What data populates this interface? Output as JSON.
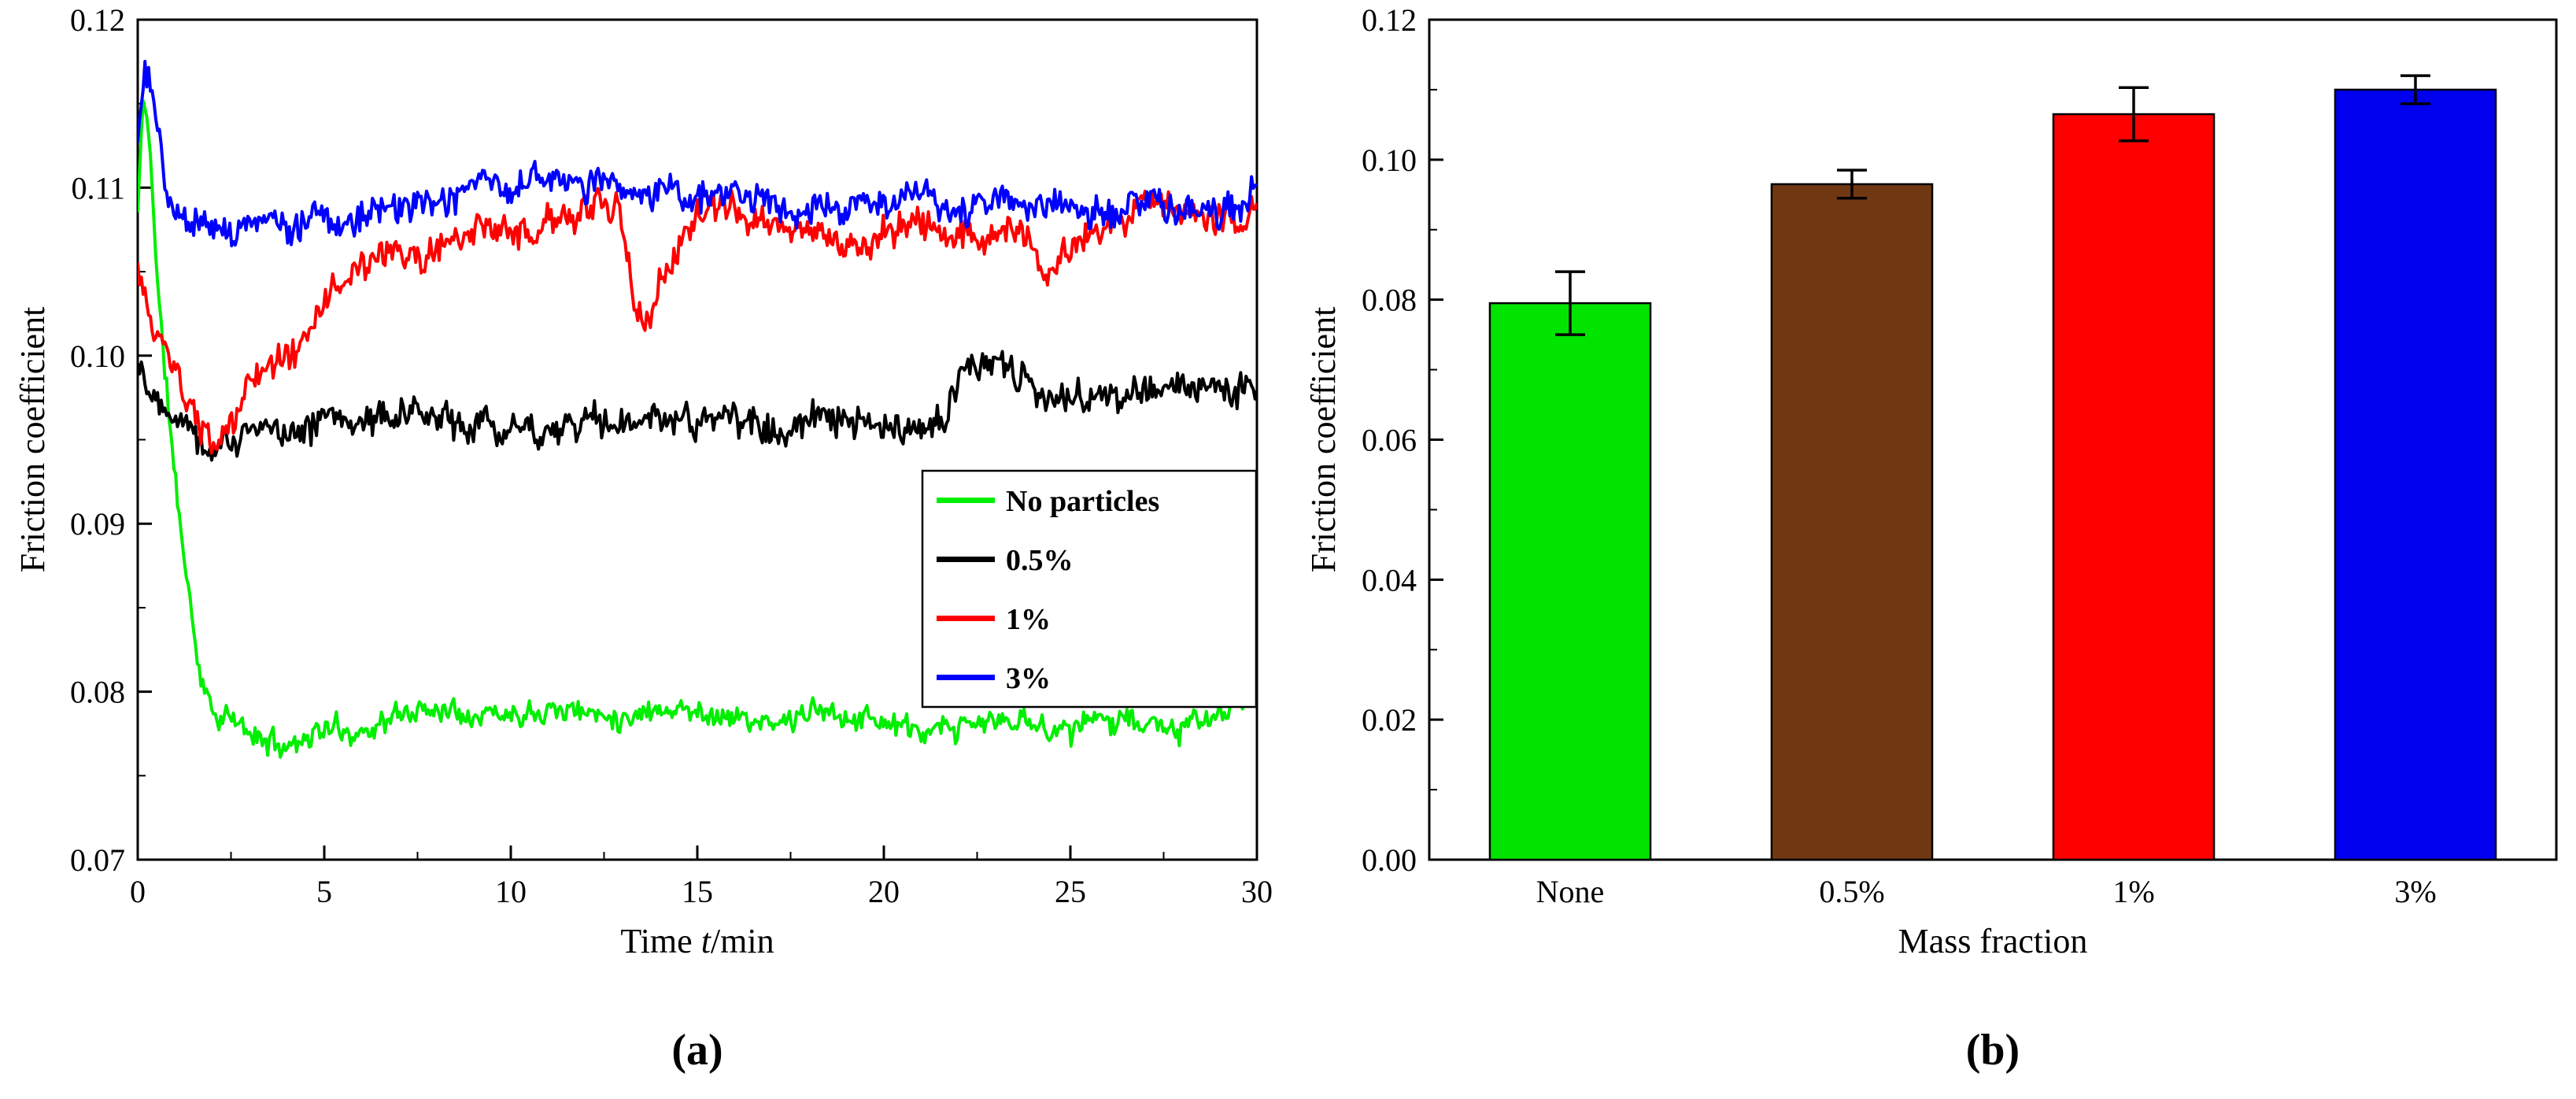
{
  "page": {
    "background": "#ffffff"
  },
  "panels": [
    {
      "label": "(a)"
    },
    {
      "label": "(b)"
    }
  ],
  "chart_data": [
    {
      "type": "line",
      "title": "",
      "xlabel": "Time t/min",
      "xlabel_parts": [
        {
          "text": "Time ",
          "italic": false
        },
        {
          "text": "t",
          "italic": true
        },
        {
          "text": "/min",
          "italic": false
        }
      ],
      "ylabel": "Friction coefficient",
      "xlim": [
        0,
        30
      ],
      "ylim": [
        0.07,
        0.12
      ],
      "xticks": [
        0,
        5,
        10,
        15,
        20,
        25,
        30
      ],
      "xtick_labels": [
        "0",
        "5",
        "10",
        "15",
        "20",
        "25",
        "30"
      ],
      "yticks": [
        0.07,
        0.08,
        0.09,
        0.1,
        0.11,
        0.12
      ],
      "ytick_labels": [
        "0.07",
        "0.08",
        "0.09",
        "0.10",
        "0.11",
        "0.12"
      ],
      "x_minor_step": 2.5,
      "y_minor_step": 0.005,
      "grid": false,
      "legend_position": "right-middle",
      "legend_entries": [
        "No particles",
        "0.5%",
        "1%",
        "3%"
      ],
      "series": [
        {
          "name": "No particles",
          "color": "#00ee00",
          "noise": 0.0009,
          "seed": 11,
          "keypoints": [
            [
              0,
              0.1085
            ],
            [
              0.15,
              0.1155
            ],
            [
              0.35,
              0.112
            ],
            [
              0.55,
              0.1035
            ],
            [
              0.8,
              0.0975
            ],
            [
              1.0,
              0.0925
            ],
            [
              1.3,
              0.0872
            ],
            [
              1.6,
              0.0818
            ],
            [
              2.0,
              0.0788
            ],
            [
              2.6,
              0.0782
            ],
            [
              3.2,
              0.0772
            ],
            [
              4.0,
              0.0768
            ],
            [
              5,
              0.0778
            ],
            [
              6,
              0.0776
            ],
            [
              7,
              0.0786
            ],
            [
              8,
              0.0791
            ],
            [
              9,
              0.0788
            ],
            [
              10,
              0.0787
            ],
            [
              11,
              0.0791
            ],
            [
              12,
              0.0788
            ],
            [
              13,
              0.0785
            ],
            [
              14,
              0.0791
            ],
            [
              15,
              0.0788
            ],
            [
              16,
              0.0785
            ],
            [
              17,
              0.0779
            ],
            [
              18,
              0.0788
            ],
            [
              19,
              0.0786
            ],
            [
              20,
              0.0783
            ],
            [
              21,
              0.0774
            ],
            [
              22,
              0.0778
            ],
            [
              23,
              0.0783
            ],
            [
              24,
              0.0781
            ],
            [
              25,
              0.0777
            ],
            [
              26,
              0.0786
            ],
            [
              27,
              0.0781
            ],
            [
              28,
              0.0777
            ],
            [
              29,
              0.0787
            ],
            [
              29.6,
              0.0792
            ],
            [
              30,
              0.0808
            ]
          ]
        },
        {
          "name": "0.5%",
          "color": "#000000",
          "noise": 0.0013,
          "seed": 22,
          "keypoints": [
            [
              0,
              0.0998
            ],
            [
              0.4,
              0.0978
            ],
            [
              0.8,
              0.0972
            ],
            [
              1.2,
              0.0966
            ],
            [
              1.6,
              0.0952
            ],
            [
              2.0,
              0.0944
            ],
            [
              2.5,
              0.095
            ],
            [
              3,
              0.0953
            ],
            [
              4,
              0.0958
            ],
            [
              5,
              0.0961
            ],
            [
              6,
              0.0963
            ],
            [
              7,
              0.0965
            ],
            [
              8,
              0.0962
            ],
            [
              9,
              0.0959
            ],
            [
              10,
              0.0957
            ],
            [
              11,
              0.0957
            ],
            [
              12,
              0.096
            ],
            [
              13,
              0.0958
            ],
            [
              14,
              0.0962
            ],
            [
              15,
              0.096
            ],
            [
              16,
              0.0962
            ],
            [
              17,
              0.0957
            ],
            [
              18,
              0.0962
            ],
            [
              19,
              0.0958
            ],
            [
              20,
              0.0955
            ],
            [
              21,
              0.0957
            ],
            [
              21.6,
              0.0966
            ],
            [
              22.2,
              0.0988
            ],
            [
              22.8,
              0.0994
            ],
            [
              23.2,
              0.0992
            ],
            [
              23.8,
              0.0984
            ],
            [
              24.5,
              0.0979
            ],
            [
              25.5,
              0.0976
            ],
            [
              26.5,
              0.0977
            ],
            [
              27.5,
              0.0981
            ],
            [
              28.5,
              0.0978
            ],
            [
              29.3,
              0.0981
            ],
            [
              30,
              0.0987
            ]
          ]
        },
        {
          "name": "1%",
          "color": "#ff0000",
          "noise": 0.0012,
          "seed": 33,
          "keypoints": [
            [
              0,
              0.1052
            ],
            [
              0.3,
              0.1022
            ],
            [
              0.7,
              0.1002
            ],
            [
              1.1,
              0.0986
            ],
            [
              1.5,
              0.0962
            ],
            [
              2.0,
              0.0946
            ],
            [
              2.5,
              0.0956
            ],
            [
              3.0,
              0.0986
            ],
            [
              3.6,
              0.0996
            ],
            [
              4.2,
              0.1002
            ],
            [
              4.7,
              0.1018
            ],
            [
              5.2,
              0.104
            ],
            [
              5.8,
              0.105
            ],
            [
              6.4,
              0.1056
            ],
            [
              7.0,
              0.106
            ],
            [
              7.6,
              0.1058
            ],
            [
              8.2,
              0.1068
            ],
            [
              8.8,
              0.1071
            ],
            [
              9.4,
              0.1073
            ],
            [
              10,
              0.1071
            ],
            [
              10.6,
              0.1071
            ],
            [
              11.2,
              0.108
            ],
            [
              11.8,
              0.1083
            ],
            [
              12.4,
              0.109
            ],
            [
              12.9,
              0.1088
            ],
            [
              13.3,
              0.1032
            ],
            [
              13.7,
              0.102
            ],
            [
              14.1,
              0.1048
            ],
            [
              14.6,
              0.1072
            ],
            [
              15.1,
              0.1088
            ],
            [
              15.6,
              0.1087
            ],
            [
              16.2,
              0.1082
            ],
            [
              16.8,
              0.108
            ],
            [
              17.4,
              0.1076
            ],
            [
              18.0,
              0.1071
            ],
            [
              18.6,
              0.1068
            ],
            [
              19.2,
              0.1065
            ],
            [
              19.8,
              0.107
            ],
            [
              20.4,
              0.1078
            ],
            [
              21.0,
              0.1078
            ],
            [
              21.6,
              0.1074
            ],
            [
              22.2,
              0.107
            ],
            [
              22.8,
              0.1072
            ],
            [
              23.4,
              0.1076
            ],
            [
              23.9,
              0.1068
            ],
            [
              24.3,
              0.1046
            ],
            [
              24.8,
              0.1056
            ],
            [
              25.3,
              0.107
            ],
            [
              25.9,
              0.1075
            ],
            [
              26.5,
              0.108
            ],
            [
              27.0,
              0.1098
            ],
            [
              27.5,
              0.109
            ],
            [
              28.1,
              0.1085
            ],
            [
              28.7,
              0.1081
            ],
            [
              29.3,
              0.1083
            ],
            [
              29.7,
              0.1078
            ],
            [
              30,
              0.1098
            ]
          ]
        },
        {
          "name": "3%",
          "color": "#0000ff",
          "noise": 0.0012,
          "seed": 44,
          "keypoints": [
            [
              0,
              0.1128
            ],
            [
              0.2,
              0.1172
            ],
            [
              0.45,
              0.1148
            ],
            [
              0.7,
              0.1108
            ],
            [
              1.0,
              0.1083
            ],
            [
              1.5,
              0.1078
            ],
            [
              2.0,
              0.1078
            ],
            [
              2.5,
              0.1072
            ],
            [
              3.0,
              0.1078
            ],
            [
              3.5,
              0.1081
            ],
            [
              4.0,
              0.1076
            ],
            [
              4.5,
              0.1081
            ],
            [
              5.0,
              0.1083
            ],
            [
              5.5,
              0.1078
            ],
            [
              6.0,
              0.1081
            ],
            [
              6.5,
              0.1086
            ],
            [
              7.0,
              0.1088
            ],
            [
              7.5,
              0.1091
            ],
            [
              8.0,
              0.1089
            ],
            [
              8.5,
              0.1096
            ],
            [
              9.0,
              0.1102
            ],
            [
              9.5,
              0.1106
            ],
            [
              10.0,
              0.1099
            ],
            [
              10.5,
              0.1103
            ],
            [
              11.0,
              0.1108
            ],
            [
              11.5,
              0.1106
            ],
            [
              12.0,
              0.1103
            ],
            [
              12.5,
              0.1106
            ],
            [
              13.0,
              0.1099
            ],
            [
              13.5,
              0.1096
            ],
            [
              14.0,
              0.1099
            ],
            [
              14.5,
              0.1101
            ],
            [
              15.0,
              0.1096
            ],
            [
              15.5,
              0.1093
            ],
            [
              16.0,
              0.1099
            ],
            [
              16.5,
              0.1093
            ],
            [
              17.0,
              0.1089
            ],
            [
              17.5,
              0.1086
            ],
            [
              18.0,
              0.1091
            ],
            [
              18.5,
              0.1089
            ],
            [
              19.0,
              0.1086
            ],
            [
              19.5,
              0.1089
            ],
            [
              20.0,
              0.1091
            ],
            [
              20.5,
              0.1093
            ],
            [
              21.0,
              0.1096
            ],
            [
              21.5,
              0.1091
            ],
            [
              22.0,
              0.1086
            ],
            [
              22.5,
              0.1089
            ],
            [
              23.0,
              0.1093
            ],
            [
              23.5,
              0.1089
            ],
            [
              24.0,
              0.1086
            ],
            [
              24.5,
              0.1089
            ],
            [
              25.0,
              0.1091
            ],
            [
              25.5,
              0.1086
            ],
            [
              26.0,
              0.1083
            ],
            [
              26.5,
              0.1089
            ],
            [
              27.0,
              0.1093
            ],
            [
              27.5,
              0.1089
            ],
            [
              28.0,
              0.1086
            ],
            [
              28.5,
              0.1091
            ],
            [
              29.0,
              0.1086
            ],
            [
              29.5,
              0.1089
            ],
            [
              30,
              0.1099
            ]
          ]
        }
      ]
    },
    {
      "type": "bar",
      "title": "",
      "xlabel": "Mass fraction",
      "ylabel": "Friction coefficient",
      "categories": [
        "None",
        "0.5%",
        "1%",
        "3%"
      ],
      "values": [
        0.0795,
        0.0965,
        0.1065,
        0.11
      ],
      "errors": [
        0.0045,
        0.002,
        0.0038,
        0.002
      ],
      "bar_colors": [
        "#00e400",
        "#703812",
        "#fe0000",
        "#0000ee"
      ],
      "bar_edge_color": "#000000",
      "ylim": [
        0,
        0.12
      ],
      "yticks": [
        0,
        0.02,
        0.04,
        0.06,
        0.08,
        0.1,
        0.12
      ],
      "ytick_labels": [
        "0.00",
        "0.02",
        "0.04",
        "0.06",
        "0.08",
        "0.10",
        "0.12"
      ],
      "y_minor_step": 0.01,
      "grid": false,
      "legend_position": "none"
    }
  ]
}
